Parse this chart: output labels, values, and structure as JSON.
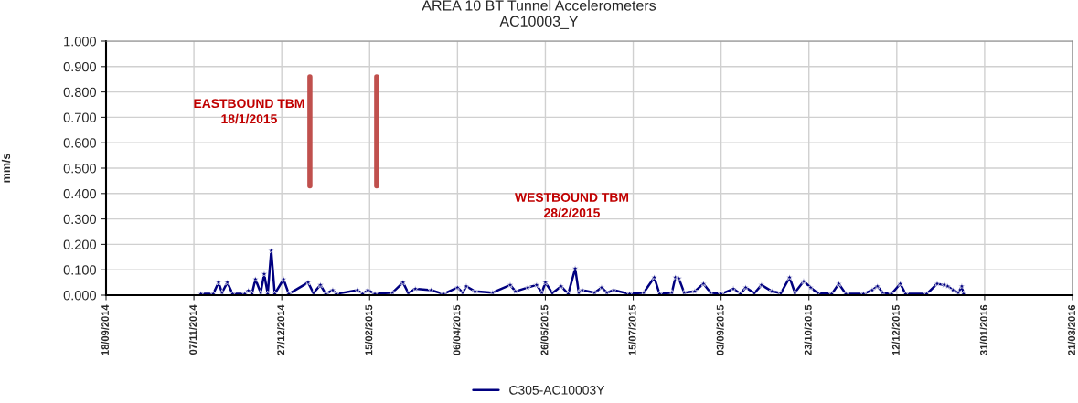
{
  "chart_data": {
    "type": "line",
    "title": "AREA 10 BT Tunnel Accelerometers",
    "subtitle": "AC10003_Y",
    "ylabel": "mm/s",
    "x": [
      "2014-11-11",
      "2014-11-18",
      "2014-11-21",
      "2014-11-23",
      "2014-11-26",
      "2014-11-29",
      "2014-12-06",
      "2014-12-08",
      "2014-12-10",
      "2014-12-12",
      "2014-12-15",
      "2014-12-17",
      "2014-12-19",
      "2014-12-21",
      "2014-12-23",
      "2014-12-28",
      "2014-12-31",
      "2015-01-11",
      "2015-01-14",
      "2015-01-18",
      "2015-01-21",
      "2015-01-25",
      "2015-01-27",
      "2015-02-08",
      "2015-02-11",
      "2015-02-14",
      "2015-02-18",
      "2015-02-28",
      "2015-03-06",
      "2015-03-09",
      "2015-03-13",
      "2015-03-22",
      "2015-03-29",
      "2015-04-06",
      "2015-04-09",
      "2015-04-11",
      "2015-04-16",
      "2015-04-26",
      "2015-05-06",
      "2015-05-09",
      "2015-05-16",
      "2015-05-21",
      "2015-05-24",
      "2015-05-26",
      "2015-05-30",
      "2015-06-04",
      "2015-06-08",
      "2015-06-12",
      "2015-06-14",
      "2015-06-16",
      "2015-06-23",
      "2015-06-27",
      "2015-06-30",
      "2015-07-04",
      "2015-07-13",
      "2015-07-21",
      "2015-07-27",
      "2015-07-30",
      "2015-08-06",
      "2015-08-08",
      "2015-08-10",
      "2015-08-13",
      "2015-08-19",
      "2015-08-24",
      "2015-08-28",
      "2015-09-03",
      "2015-09-10",
      "2015-09-14",
      "2015-09-17",
      "2015-09-22",
      "2015-09-26",
      "2015-10-02",
      "2015-10-07",
      "2015-10-12",
      "2015-10-15",
      "2015-10-20",
      "2015-10-24",
      "2015-10-28",
      "2015-11-05",
      "2015-11-09",
      "2015-11-13",
      "2015-11-23",
      "2015-11-28",
      "2015-12-01",
      "2015-12-04",
      "2015-12-09",
      "2015-12-14",
      "2015-12-17",
      "2015-12-29",
      "2016-01-04",
      "2016-01-08",
      "2016-01-10",
      "2016-01-13",
      "2016-01-16",
      "2016-01-18",
      "2016-01-19"
    ],
    "series": [
      {
        "name": "C305-AC10003Y",
        "color": "#000080",
        "values": [
          0.005,
          0.005,
          0.05,
          0.01,
          0.05,
          0.005,
          0.005,
          0.018,
          0.005,
          0.063,
          0.01,
          0.083,
          0.005,
          0.175,
          0.005,
          0.063,
          0.005,
          0.05,
          0.008,
          0.04,
          0.005,
          0.02,
          0.005,
          0.02,
          0.005,
          0.02,
          0.005,
          0.01,
          0.05,
          0.008,
          0.025,
          0.02,
          0.005,
          0.03,
          0.01,
          0.035,
          0.015,
          0.01,
          0.04,
          0.015,
          0.03,
          0.04,
          0.01,
          0.05,
          0.008,
          0.035,
          0.005,
          0.105,
          0.01,
          0.02,
          0.01,
          0.03,
          0.01,
          0.02,
          0.005,
          0.01,
          0.07,
          0.005,
          0.01,
          0.07,
          0.065,
          0.01,
          0.015,
          0.045,
          0.01,
          0.005,
          0.025,
          0.005,
          0.03,
          0.008,
          0.04,
          0.015,
          0.008,
          0.07,
          0.01,
          0.055,
          0.03,
          0.008,
          0.005,
          0.045,
          0.005,
          0.005,
          0.02,
          0.035,
          0.01,
          0.005,
          0.045,
          0.005,
          0.005,
          0.045,
          0.04,
          0.035,
          0.02,
          0.01,
          0.035,
          0.005
        ]
      }
    ],
    "xlim": [
      "2014-09-18",
      "2016-03-21"
    ],
    "xticks": [
      {
        "value": "2014-09-18",
        "label": "18/09/2014"
      },
      {
        "value": "2014-11-07",
        "label": "07/11/2014"
      },
      {
        "value": "2014-12-27",
        "label": "27/12/2014"
      },
      {
        "value": "2015-02-15",
        "label": "15/02/2015"
      },
      {
        "value": "2015-04-06",
        "label": "06/04/2015"
      },
      {
        "value": "2015-05-26",
        "label": "26/05/2015"
      },
      {
        "value": "2015-07-15",
        "label": "15/07/2015"
      },
      {
        "value": "2015-09-03",
        "label": "03/09/2015"
      },
      {
        "value": "2015-10-23",
        "label": "23/10/2015"
      },
      {
        "value": "2015-12-12",
        "label": "12/12/2015"
      },
      {
        "value": "2016-01-31",
        "label": "31/01/2016"
      },
      {
        "value": "2016-03-21",
        "label": "21/03/2016"
      }
    ],
    "ylim": [
      0,
      1
    ],
    "yticks": [
      {
        "value": 0,
        "label": "0.000"
      },
      {
        "value": 0.1,
        "label": "0.100"
      },
      {
        "value": 0.2,
        "label": "0.200"
      },
      {
        "value": 0.3,
        "label": "0.300"
      },
      {
        "value": 0.4,
        "label": "0.400"
      },
      {
        "value": 0.5,
        "label": "0.500"
      },
      {
        "value": 0.6,
        "label": "0.600"
      },
      {
        "value": 0.7,
        "label": "0.700"
      },
      {
        "value": 0.8,
        "label": "0.800"
      },
      {
        "value": 0.9,
        "label": "0.900"
      },
      {
        "value": 1,
        "label": "1.000"
      }
    ],
    "ref_lines": [
      {
        "axis": "x",
        "value": "2015-01-12",
        "color": "#c0504d"
      },
      {
        "axis": "x",
        "value": "2015-02-19",
        "color": "#c0504d"
      }
    ],
    "annotations": [
      "EASTBOUND TBM\n18/1/2015",
      "WESTBOUND TBM\n28/2/2015"
    ],
    "grid": true,
    "legend": "bottom",
    "marker": "star",
    "line_style": "solid"
  }
}
